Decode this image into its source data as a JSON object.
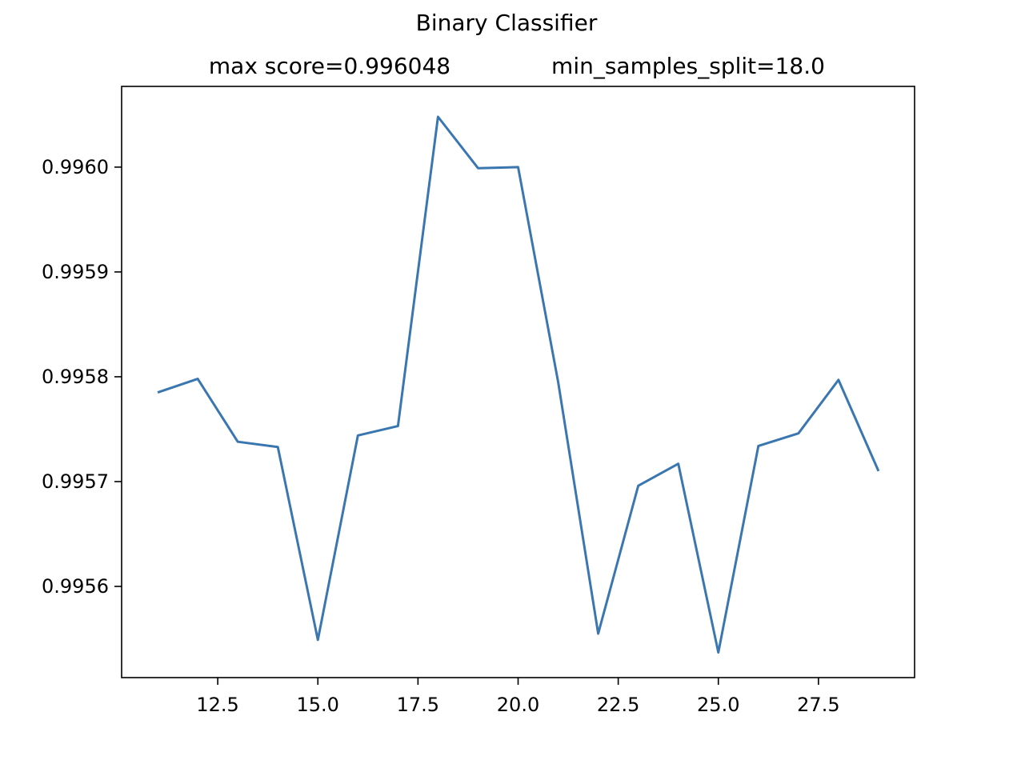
{
  "chart_data": {
    "type": "line",
    "title": "Binary Classifier",
    "subtitle_left": "max score=0.996048",
    "subtitle_right": "min_samples_split=18.0",
    "xlabel": "",
    "ylabel": "",
    "xlim": [
      10.1,
      29.9
    ],
    "ylim": [
      0.995513,
      0.996077
    ],
    "xticks": [
      12.5,
      15.0,
      17.5,
      20.0,
      22.5,
      25.0,
      27.5
    ],
    "xtick_labels": [
      "12.5",
      "15.0",
      "17.5",
      "20.0",
      "22.5",
      "25.0",
      "27.5"
    ],
    "yticks": [
      0.9956,
      0.9957,
      0.9958,
      0.9959,
      0.996
    ],
    "ytick_labels": [
      "0.9956",
      "0.9957",
      "0.9958",
      "0.9959",
      "0.9960"
    ],
    "grid": false,
    "line_color": "#3a76af",
    "series": [
      {
        "x": [
          11,
          12,
          13,
          14,
          15,
          16,
          17,
          18,
          19,
          20,
          21,
          22,
          23,
          24,
          25,
          26,
          27,
          28,
          29
        ],
        "values": [
          0.995785,
          0.995798,
          0.995738,
          0.995733,
          0.995549,
          0.995744,
          0.995753,
          0.996048,
          0.995999,
          0.996,
          0.995795,
          0.995555,
          0.995696,
          0.995717,
          0.995537,
          0.995734,
          0.995746,
          0.995797,
          0.99571
        ]
      }
    ]
  }
}
